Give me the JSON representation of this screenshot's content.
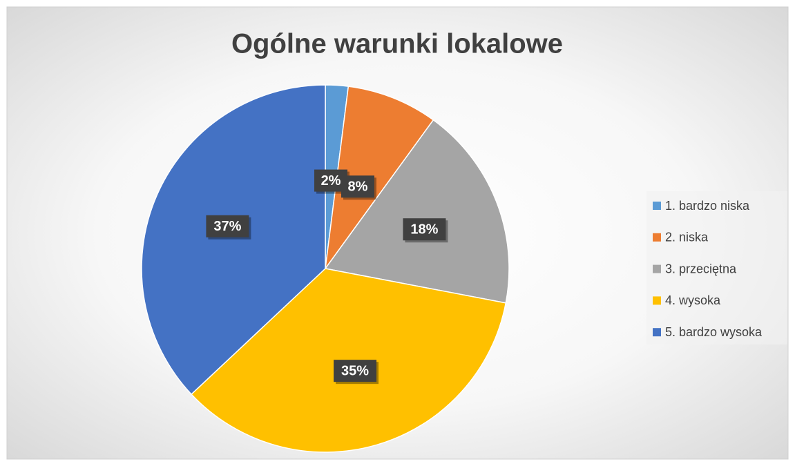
{
  "chart_data": {
    "type": "pie",
    "title": "Ogólne warunki lokalowe",
    "categories": [
      "1. bardzo niska",
      "2. niska",
      "3. przeciętna",
      "4. wysoka",
      "5. bardzo wysoka"
    ],
    "values": [
      2,
      8,
      18,
      35,
      37
    ],
    "value_labels": [
      "2%",
      "8%",
      "18%",
      "35%",
      "37%"
    ],
    "colors": [
      "#5b9bd5",
      "#ed7d31",
      "#a5a5a5",
      "#ffc000",
      "#4472c4"
    ],
    "legend": "right"
  }
}
